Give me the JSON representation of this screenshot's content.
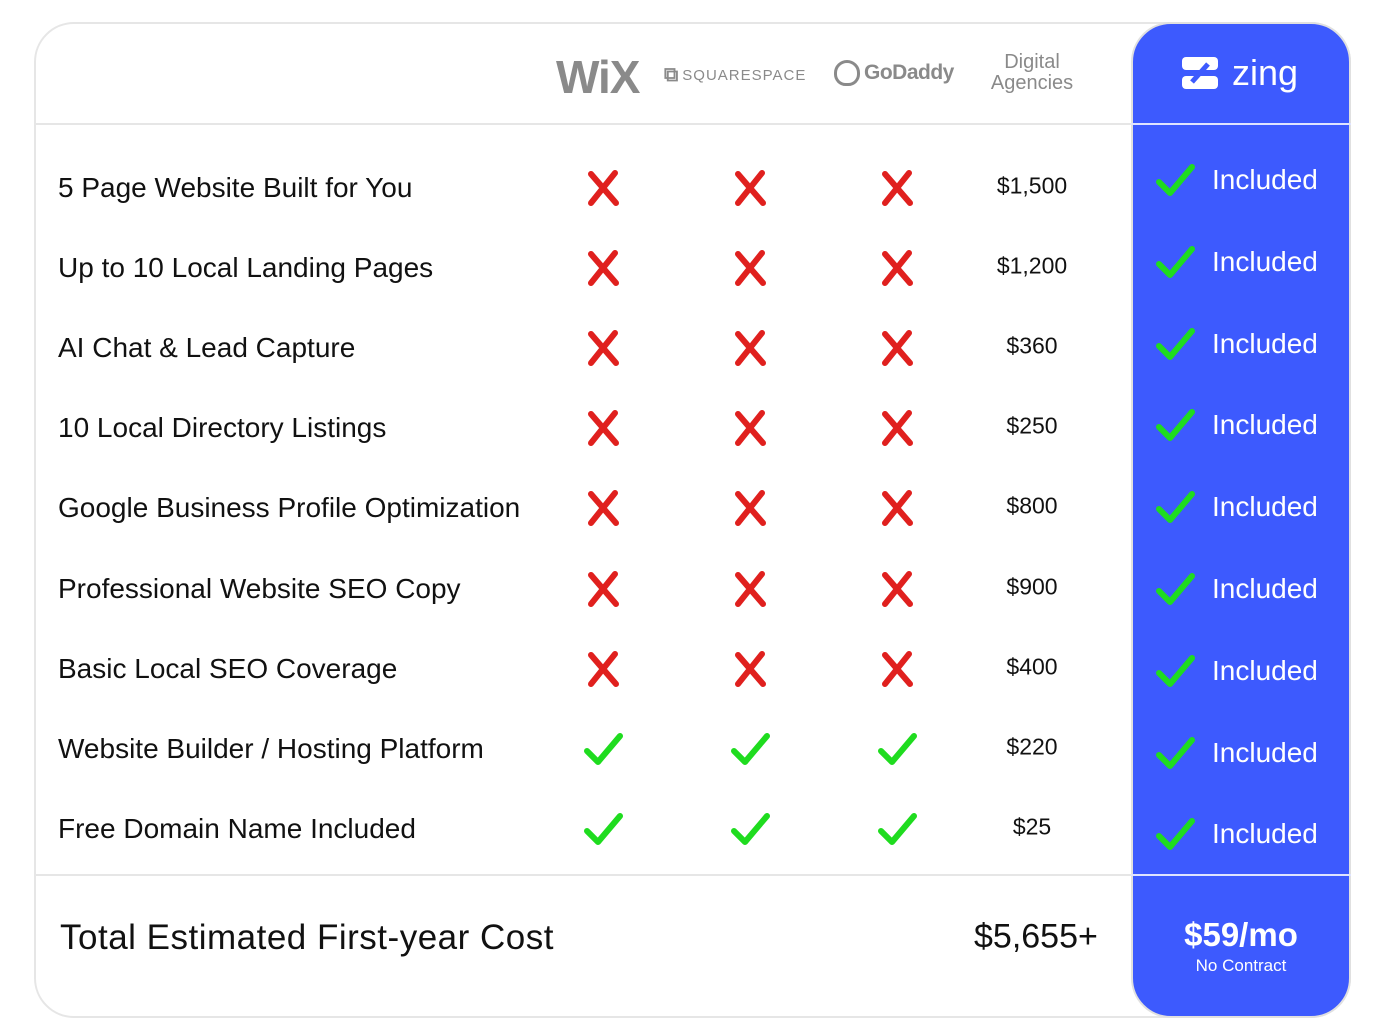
{
  "header": {
    "competitors": [
      "WiX",
      "SQUARESPACE",
      "GoDaddy"
    ],
    "agencies_label_1": "Digital",
    "agencies_label_2": "Agencies",
    "brand": "zing"
  },
  "colors": {
    "brand_blue": "#3d5afe",
    "cross_red": "#e0201e",
    "check_green": "#1fdc1f"
  },
  "rows": [
    {
      "feature": "5 Page Website Built for You",
      "wix": "cross",
      "squarespace": "cross",
      "godaddy": "cross",
      "agencies": "$1,500",
      "zing": "Included"
    },
    {
      "feature": "Up to 10 Local Landing Pages",
      "wix": "cross",
      "squarespace": "cross",
      "godaddy": "cross",
      "agencies": "$1,200",
      "zing": "Included"
    },
    {
      "feature": "AI Chat & Lead Capture",
      "wix": "cross",
      "squarespace": "cross",
      "godaddy": "cross",
      "agencies": "$360",
      "zing": "Included"
    },
    {
      "feature": "10 Local Directory Listings",
      "wix": "cross",
      "squarespace": "cross",
      "godaddy": "cross",
      "agencies": "$250",
      "zing": "Included"
    },
    {
      "feature": "Google Business Profile Optimization",
      "wix": "cross",
      "squarespace": "cross",
      "godaddy": "cross",
      "agencies": "$800",
      "zing": "Included"
    },
    {
      "feature": "Professional Website SEO Copy",
      "wix": "cross",
      "squarespace": "cross",
      "godaddy": "cross",
      "agencies": "$900",
      "zing": "Included"
    },
    {
      "feature": "Basic Local SEO Coverage",
      "wix": "cross",
      "squarespace": "cross",
      "godaddy": "cross",
      "agencies": "$400",
      "zing": "Included"
    },
    {
      "feature": "Website Builder / Hosting Platform",
      "wix": "check",
      "squarespace": "check",
      "godaddy": "check",
      "agencies": "$220",
      "zing": "Included"
    },
    {
      "feature": "Free Domain Name Included",
      "wix": "check",
      "squarespace": "check",
      "godaddy": "check",
      "agencies": "$25",
      "zing": "Included"
    }
  ],
  "footer": {
    "label": "Total Estimated First-year Cost",
    "agencies_total": "$5,655+",
    "zing_price": "$59/mo",
    "zing_note": "No Contract"
  }
}
